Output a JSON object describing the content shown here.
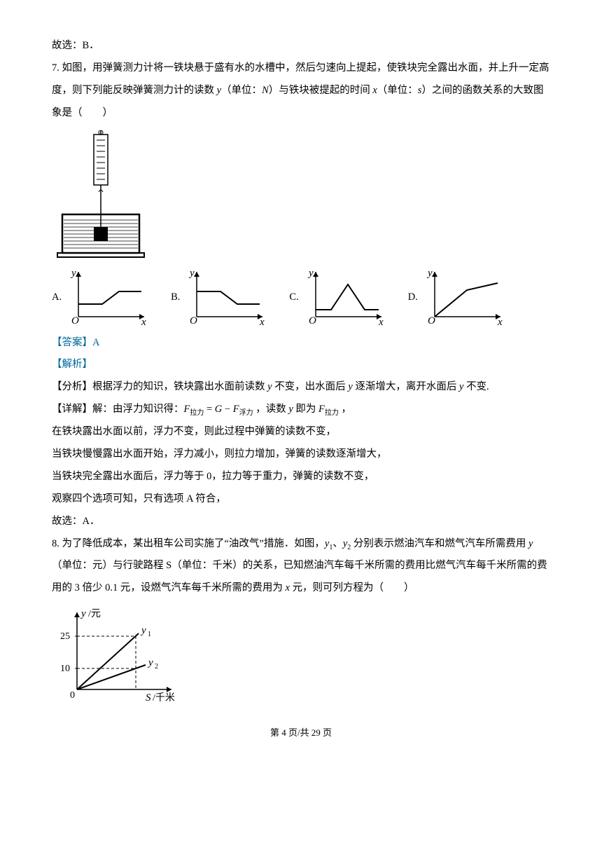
{
  "line_prev_answer": "故选：B．",
  "q7": {
    "stem": "7. 如图，用弹簧测力计将一铁块悬于盛有水的水槽中，然后匀速向上提起，使铁块完全露出水面，并上升一定高度，则下列能反映弹簧测力计的读数 <span class='italic'>y</span>（单位：<span class='italic'>N</span>）与铁块被提起的时间 <span class='italic'>x</span>（单位：<span class='italic'>s</span>）之间的函数关系的大致图象是（　　）",
    "options": {
      "A": "A.",
      "B": "B.",
      "C": "C.",
      "D": "D."
    },
    "answer_label": "【答案】",
    "answer_val": "A",
    "analysis_label": "【解析】",
    "analysis_heading": "【分析】根据浮力的知识，铁块露出水面前读数 <span class='italic'>y</span> 不变，出水面后 <span class='italic'>y</span> 逐渐增大，离开水面后 <span class='italic'>y</span> 不变.",
    "detail1": "【详解】解：由浮力知识得：<span class='italic'>F</span><span class='sub'>拉力</span> = <span class='italic'>G</span> − <span class='italic'>F</span><span class='sub'>浮力</span> ，读数 <span class='italic'>y</span> 即为 <span class='italic'>F</span><span class='sub'>拉力</span> ，",
    "detail2": "在铁块露出水面以前，浮力不变，则此过程中弹簧的读数不变，",
    "detail3": "当铁块慢慢露出水面开始，浮力减小，则拉力增加，弹簧的读数逐渐增大，",
    "detail4": "当铁块完全露出水面后，浮力等于 0，拉力等于重力，弹簧的读数不变，",
    "detail5": "观察四个选项可知，只有选项 A 符合，",
    "detail6": "故选：A．"
  },
  "q8": {
    "stem": "8. 为了降低成本，某出租车公司实施了“油改气”措施．如图，<span class='italic'>y</span><span class='sub'>1</span>、<span class='italic'>y</span><span class='sub'>2</span> 分别表示燃油汽车和燃气汽车所需费用 <span class='italic'>y</span>（单位：元）与行驶路程 S（单位：千米）的关系，已知燃油汽车每千米所需的费用比燃气汽车每千米所需的费用的 3 倍少 0.1 元，设燃气汽车每千米所需的费用为 <span class='italic'>x</span> 元，则可列方程为（　　）",
    "chart": {
      "y_label": "y/元",
      "x_label": "S/千米",
      "y_ticks": [
        10,
        25
      ],
      "series1_label": "y₁",
      "series2_label": "y₂",
      "colors": {
        "axes": "#000000",
        "grid": "#000000"
      }
    }
  },
  "footer": {
    "page": "第 4 页/共 29 页"
  }
}
